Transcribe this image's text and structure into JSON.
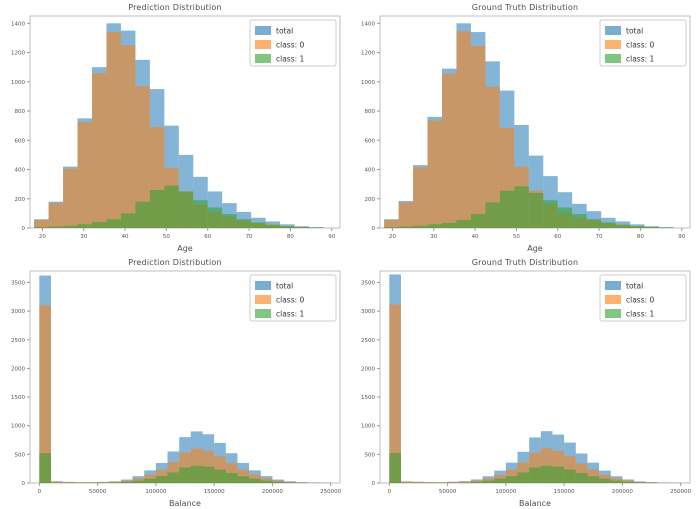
{
  "figure": {
    "background": "#ffffff"
  },
  "legend_labels": [
    "total",
    "class: 0",
    "class: 1"
  ],
  "series_colors": {
    "total": "#1f77b4",
    "class_0": "#ff7f0e",
    "class_1": "#2ca02c"
  },
  "chart_data": [
    {
      "type": "bar",
      "title": "Prediction Distribution",
      "xlabel": "Age",
      "ylabel": "",
      "bin_start": 18,
      "bin_width": 3.5,
      "xlim": [
        17,
        92
      ],
      "ylim": [
        0,
        1450
      ],
      "xticks": [
        20,
        30,
        40,
        50,
        60,
        70,
        80,
        90
      ],
      "yticks": [
        0,
        200,
        400,
        600,
        800,
        1000,
        1200,
        1400
      ],
      "grid": false,
      "legend_position": "upper right",
      "series": [
        {
          "name": "total",
          "color": "#1f77b4",
          "values": [
            60,
            180,
            420,
            750,
            1100,
            1400,
            1350,
            1150,
            950,
            700,
            500,
            350,
            250,
            170,
            110,
            70,
            45,
            25,
            12,
            6
          ]
        },
        {
          "name": "class: 0",
          "color": "#ff7f0e",
          "values": [
            55,
            170,
            405,
            725,
            1060,
            1340,
            1250,
            970,
            690,
            410,
            250,
            160,
            110,
            75,
            50,
            32,
            23,
            13,
            6,
            3
          ]
        },
        {
          "name": "class: 1",
          "color": "#2ca02c",
          "values": [
            5,
            10,
            15,
            25,
            40,
            60,
            100,
            180,
            260,
            290,
            250,
            190,
            140,
            95,
            60,
            38,
            22,
            12,
            6,
            3
          ]
        }
      ]
    },
    {
      "type": "bar",
      "title": "Ground Truth Distribution",
      "xlabel": "Age",
      "ylabel": "",
      "bin_start": 18,
      "bin_width": 3.5,
      "xlim": [
        17,
        92
      ],
      "ylim": [
        0,
        1450
      ],
      "xticks": [
        20,
        30,
        40,
        50,
        60,
        70,
        80,
        90
      ],
      "yticks": [
        0,
        200,
        400,
        600,
        800,
        1000,
        1200,
        1400
      ],
      "grid": false,
      "legend_position": "upper right",
      "series": [
        {
          "name": "total",
          "color": "#1f77b4",
          "values": [
            60,
            185,
            430,
            760,
            1090,
            1400,
            1340,
            1140,
            940,
            705,
            495,
            355,
            245,
            165,
            115,
            70,
            45,
            25,
            12,
            6
          ]
        },
        {
          "name": "class: 0",
          "color": "#ff7f0e",
          "values": [
            55,
            175,
            415,
            735,
            1055,
            1345,
            1245,
            965,
            685,
            420,
            255,
            165,
            105,
            70,
            55,
            32,
            23,
            13,
            6,
            3
          ]
        },
        {
          "name": "class: 1",
          "color": "#2ca02c",
          "values": [
            5,
            10,
            15,
            25,
            35,
            55,
            95,
            175,
            255,
            285,
            240,
            190,
            140,
            95,
            60,
            38,
            22,
            12,
            6,
            3
          ]
        }
      ]
    },
    {
      "type": "bar",
      "title": "Prediction Distribution",
      "xlabel": "Balance",
      "ylabel": "",
      "bin_start": 0,
      "bin_width": 10000,
      "xlim": [
        -8000,
        258000
      ],
      "ylim": [
        0,
        3700
      ],
      "xticks": [
        0,
        50000,
        100000,
        150000,
        200000,
        250000
      ],
      "yticks": [
        0,
        500,
        1000,
        1500,
        2000,
        2500,
        3000,
        3500
      ],
      "grid": false,
      "legend_position": "upper right",
      "series": [
        {
          "name": "total",
          "color": "#1f77b4",
          "values": [
            3620,
            30,
            20,
            15,
            15,
            20,
            30,
            60,
            120,
            220,
            350,
            550,
            800,
            900,
            850,
            700,
            520,
            350,
            220,
            120,
            60,
            30,
            15,
            8,
            4
          ]
        },
        {
          "name": "class: 0",
          "color": "#ff7f0e",
          "values": [
            3100,
            25,
            17,
            12,
            12,
            16,
            25,
            40,
            80,
            145,
            230,
            365,
            530,
            600,
            565,
            465,
            345,
            233,
            146,
            80,
            40,
            20,
            10,
            5,
            3
          ]
        },
        {
          "name": "class: 1",
          "color": "#2ca02c",
          "values": [
            520,
            5,
            3,
            3,
            3,
            4,
            5,
            20,
            40,
            75,
            120,
            185,
            270,
            300,
            285,
            235,
            175,
            117,
            74,
            40,
            20,
            10,
            5,
            3,
            1
          ]
        }
      ]
    },
    {
      "type": "bar",
      "title": "Ground Truth Distribution",
      "xlabel": "Balance",
      "ylabel": "",
      "bin_start": 0,
      "bin_width": 10000,
      "xlim": [
        -8000,
        258000
      ],
      "ylim": [
        0,
        3700
      ],
      "xticks": [
        0,
        50000,
        100000,
        150000,
        200000,
        250000
      ],
      "yticks": [
        0,
        500,
        1000,
        1500,
        2000,
        2500,
        3000,
        3500
      ],
      "grid": false,
      "legend_position": "upper right",
      "series": [
        {
          "name": "total",
          "color": "#1f77b4",
          "values": [
            3640,
            28,
            22,
            16,
            14,
            22,
            32,
            62,
            118,
            215,
            355,
            545,
            795,
            905,
            845,
            705,
            515,
            355,
            215,
            118,
            62,
            28,
            16,
            8,
            4
          ]
        },
        {
          "name": "class: 0",
          "color": "#ff7f0e",
          "values": [
            3115,
            23,
            19,
            13,
            11,
            18,
            27,
            42,
            78,
            140,
            235,
            360,
            525,
            605,
            560,
            470,
            340,
            238,
            141,
            78,
            42,
            18,
            11,
            5,
            3
          ]
        },
        {
          "name": "class: 1",
          "color": "#2ca02c",
          "values": [
            525,
            5,
            3,
            3,
            3,
            4,
            5,
            20,
            40,
            75,
            120,
            185,
            270,
            300,
            285,
            235,
            175,
            117,
            74,
            40,
            20,
            10,
            5,
            3,
            1
          ]
        }
      ]
    }
  ]
}
